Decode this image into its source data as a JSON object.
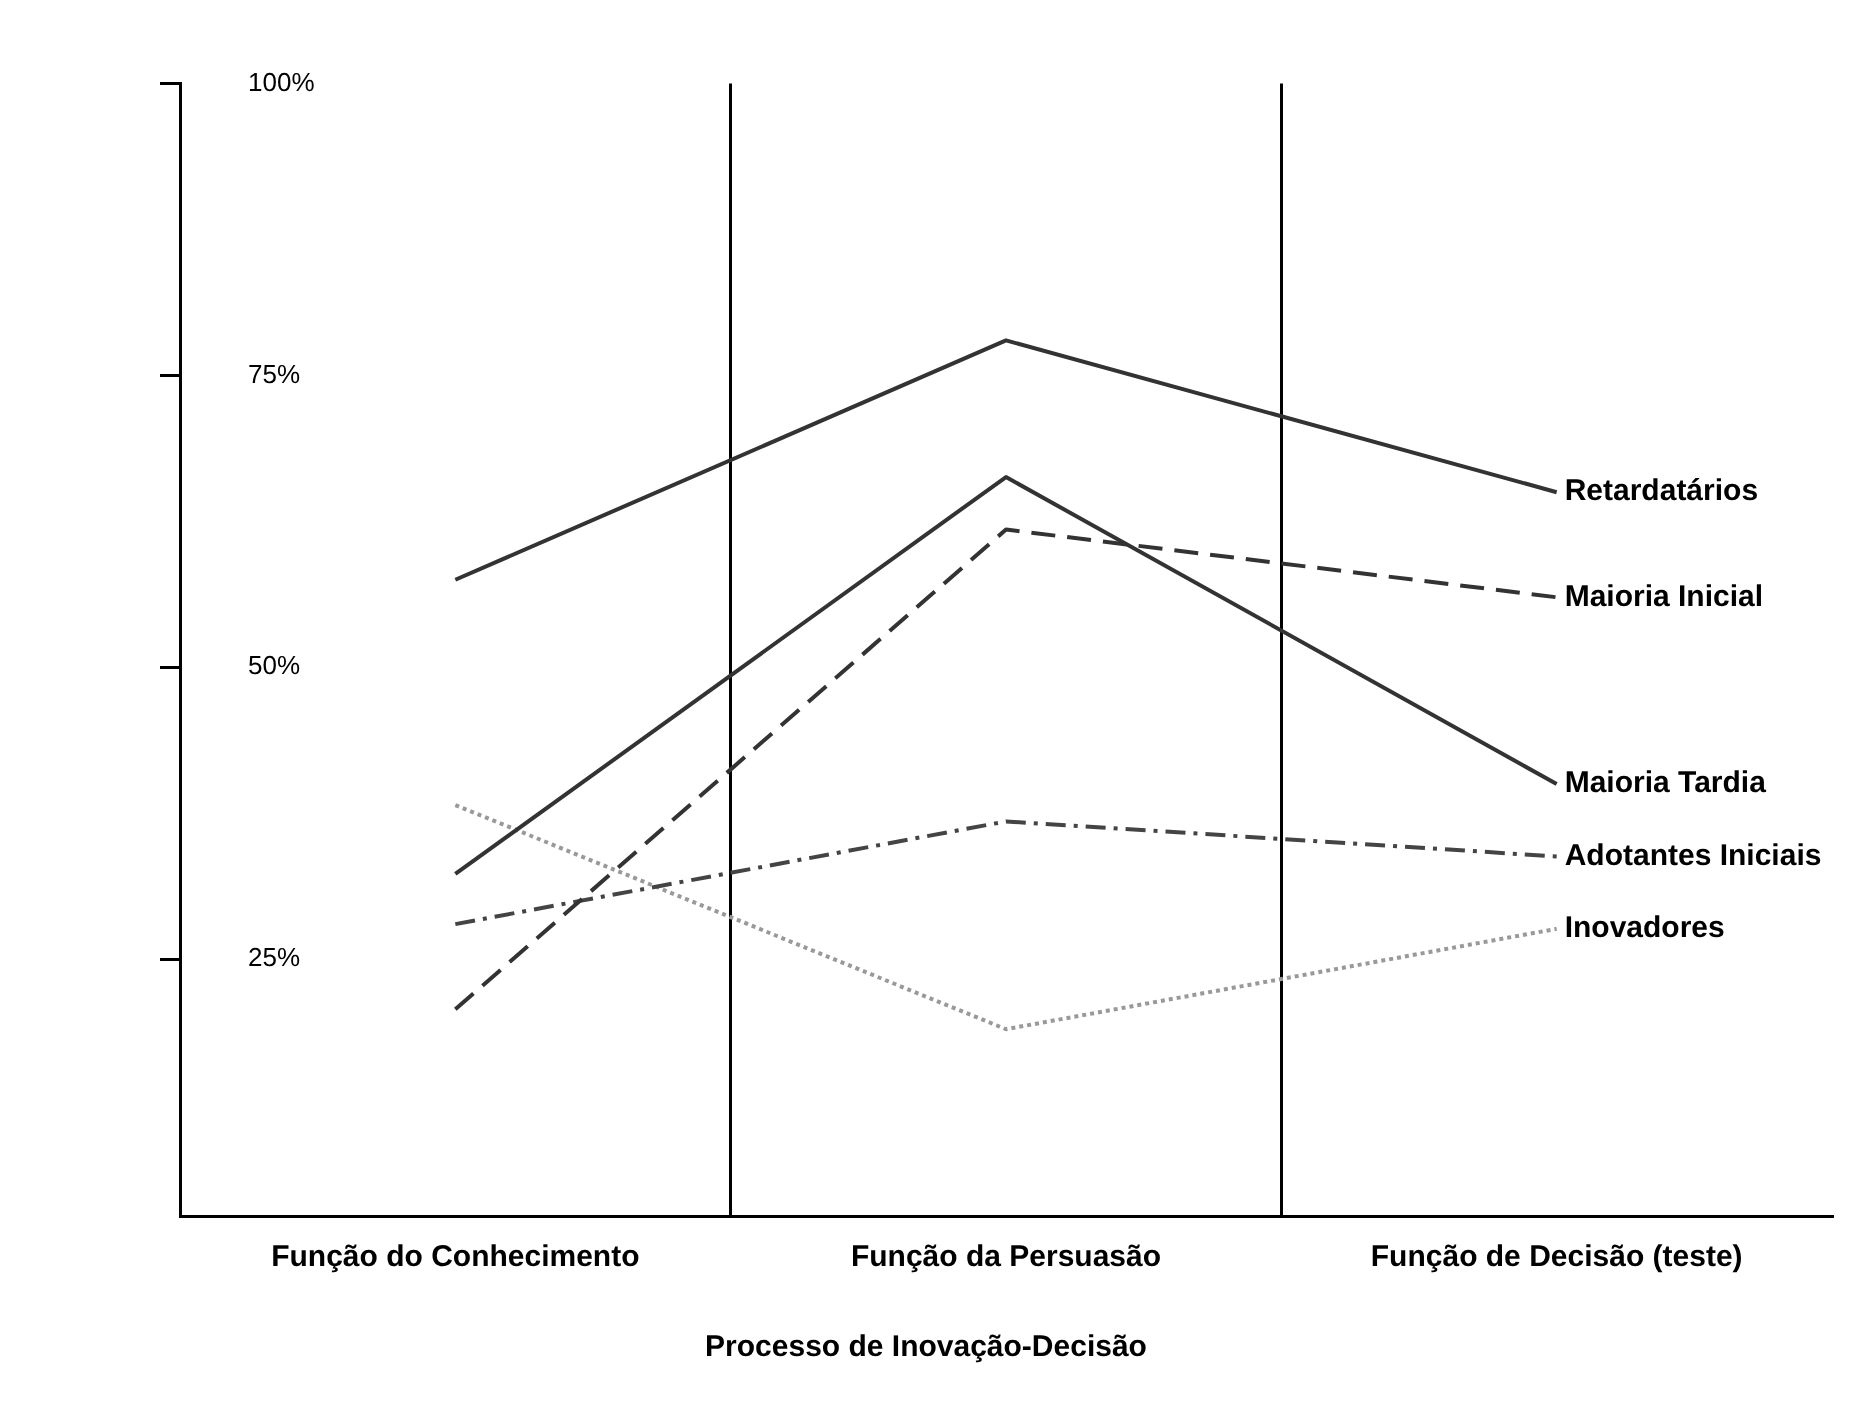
{
  "chart_data": {
    "type": "line",
    "xlabel": "Processo de Inovação-Decisão",
    "categories": [
      "Função do Conhecimento",
      "Função da Persuasão",
      "Função de Decisão (teste)"
    ],
    "ylim": [
      3,
      100
    ],
    "yticks": [
      {
        "value": 25,
        "label": "25%"
      },
      {
        "value": 50,
        "label": "50%"
      },
      {
        "value": 75,
        "label": "75%"
      },
      {
        "value": 100,
        "label": "100%"
      }
    ],
    "grid": "x",
    "legend": false,
    "marker": "none",
    "series": [
      {
        "name": "Retardatários",
        "color": "#333333",
        "line_style": "solid",
        "values": [
          57.5,
          78,
          65
        ]
      },
      {
        "name": "Maioria Inicial",
        "color": "#333333",
        "line_style": "dashed",
        "values": [
          20.7,
          61.8,
          56
        ]
      },
      {
        "name": "Maioria Tardia",
        "color": "#333333",
        "line_style": "solid",
        "values": [
          32.3,
          66.3,
          40
        ]
      },
      {
        "name": "Adotantes Iniciais",
        "color": "#444444",
        "line_style": "dashdot",
        "values": [
          28,
          36.8,
          33.8
        ]
      },
      {
        "name": "Inovadores",
        "color": "#999999",
        "line_style": "dotted",
        "values": [
          38.2,
          19,
          27.6
        ]
      }
    ]
  }
}
